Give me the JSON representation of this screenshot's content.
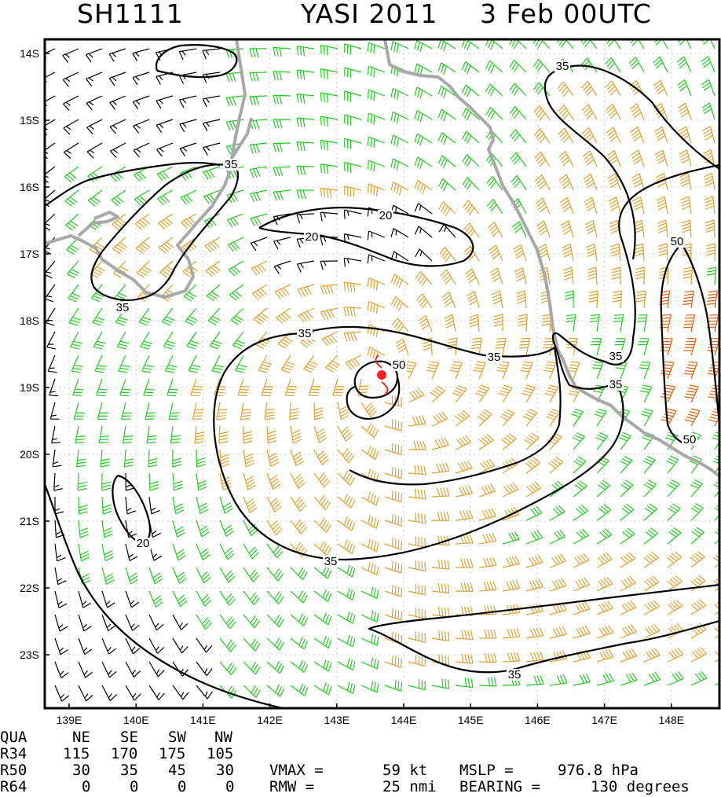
{
  "header": {
    "storm_id": "SH1111",
    "storm_name": "YASI 2011",
    "datetime": "3 Feb 00UTC"
  },
  "colors": {
    "weak_barb": "#000000",
    "gale_barb": "#22cc22",
    "storm_barb": "#e0a030",
    "hurricane_barb": "#e06010",
    "coastline": "#a8a8a8",
    "contour": "#000000",
    "center": "#ff2020"
  },
  "map": {
    "lat_labels": [
      "14S",
      "15S",
      "16S",
      "17S",
      "18S",
      "19S",
      "20S",
      "21S",
      "22S",
      "23S"
    ],
    "lon_labels": [
      "139E",
      "140E",
      "141E",
      "142E",
      "143E",
      "144E",
      "145E",
      "146E",
      "147E",
      "148E"
    ],
    "contour_labels": [
      {
        "id": "c35a",
        "text": "35"
      },
      {
        "id": "c35b",
        "text": "35"
      },
      {
        "id": "c35c",
        "text": "35"
      },
      {
        "id": "c35d",
        "text": "35"
      },
      {
        "id": "c35e",
        "text": "35"
      },
      {
        "id": "c35f",
        "text": "35"
      },
      {
        "id": "c35g",
        "text": "35"
      },
      {
        "id": "c35h",
        "text": "35"
      },
      {
        "id": "c35i",
        "text": "35"
      },
      {
        "id": "c20a",
        "text": "20"
      },
      {
        "id": "c20b",
        "text": "20"
      },
      {
        "id": "c20c",
        "text": "20"
      },
      {
        "id": "c50a",
        "text": "50"
      },
      {
        "id": "c50b",
        "text": "50"
      },
      {
        "id": "c50c",
        "text": "50"
      }
    ],
    "center_icon": "tropical-cyclone-icon"
  },
  "table": {
    "header": [
      "QUA",
      "NE",
      "SE",
      "SW",
      "NW"
    ],
    "rows": [
      {
        "label": "R34",
        "values": [
          "115",
          "170",
          "175",
          "105"
        ]
      },
      {
        "label": "R50",
        "values": [
          "30",
          "35",
          "45",
          "30"
        ]
      },
      {
        "label": "R64",
        "values": [
          "0",
          "0",
          "0",
          "0"
        ]
      }
    ],
    "vmax_label": "VMAX =",
    "vmax_value": "59 kt",
    "mslp_label": "MSLP =",
    "mslp_value": "976.8 hPa",
    "rmw_label": "RMW =",
    "rmw_value": "25 nmi",
    "bearing_label": "BEARING =",
    "bearing_value": "130 degrees"
  }
}
